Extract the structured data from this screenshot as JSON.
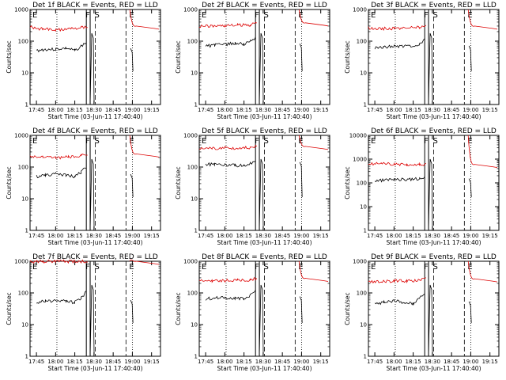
{
  "chart_data": [
    {
      "type": "line",
      "title": "Det 1f BLACK = Events, RED = LLD",
      "xlabel": "Start Time (03-Jun-11 17:40:40)",
      "ylabel": "Counts/sec",
      "x_ticks": [
        "17:45",
        "18:00",
        "18:15",
        "18:30",
        "18:45",
        "19:00",
        "19:15"
      ],
      "y_ticks": [
        "1",
        "10",
        "100",
        "1000"
      ],
      "y_scale": "log",
      "ylim": [
        1,
        1000
      ],
      "xlim_minutes": [
        17.75,
        19.33
      ],
      "series": [
        {
          "name": "Events",
          "color": "#000000",
          "x": [
            "17:45",
            "17:52",
            "18:00",
            "18:08",
            "18:15",
            "18:20",
            "18:24"
          ],
          "y": [
            50,
            55,
            55,
            60,
            50,
            70,
            90
          ]
        },
        {
          "name": "LLD",
          "color": "#dd0000",
          "x": [
            "17:40",
            "17:50",
            "18:00",
            "18:10",
            "18:20",
            "18:25"
          ],
          "y": [
            280,
            240,
            220,
            250,
            270,
            300
          ]
        }
      ],
      "markers": [
        "E",
        "F",
        "S",
        "E"
      ]
    },
    {
      "type": "line",
      "title": "Det 2f BLACK = Events, RED = LLD",
      "xlabel": "Start Time (03-Jun-11 17:40:40)",
      "ylabel": "Counts/sec",
      "x_ticks": [
        "17:45",
        "18:00",
        "18:15",
        "18:30",
        "18:45",
        "19:00",
        "19:15"
      ],
      "y_ticks": [
        "1",
        "10",
        "100",
        "1000"
      ],
      "y_scale": "log",
      "ylim": [
        1,
        1000
      ],
      "series": [
        {
          "name": "Events",
          "color": "#000000",
          "x": [
            "17:45",
            "17:52",
            "18:00",
            "18:08",
            "18:15",
            "18:20",
            "18:24"
          ],
          "y": [
            70,
            75,
            80,
            85,
            80,
            100,
            130
          ]
        },
        {
          "name": "LLD",
          "color": "#dd0000",
          "x": [
            "17:40",
            "17:50",
            "18:00",
            "18:10",
            "18:20",
            "18:25"
          ],
          "y": [
            300,
            300,
            310,
            320,
            330,
            380
          ]
        }
      ],
      "markers": [
        "E",
        "F",
        "S",
        "E"
      ]
    },
    {
      "type": "line",
      "title": "Det 3f BLACK = Events, RED = LLD",
      "xlabel": "Start Time (03-Jun-11 17:40:40)",
      "ylabel": "Counts/sec",
      "x_ticks": [
        "17:45",
        "18:00",
        "18:15",
        "18:30",
        "18:45",
        "19:00",
        "19:15"
      ],
      "y_ticks": [
        "1",
        "10",
        "100",
        "1000"
      ],
      "y_scale": "log",
      "ylim": [
        1,
        1000
      ],
      "series": [
        {
          "name": "Events",
          "color": "#000000",
          "x": [
            "17:45",
            "17:52",
            "18:00",
            "18:08",
            "18:15",
            "18:20",
            "18:24"
          ],
          "y": [
            60,
            65,
            70,
            70,
            65,
            80,
            110
          ]
        },
        {
          "name": "LLD",
          "color": "#dd0000",
          "x": [
            "17:40",
            "17:50",
            "18:00",
            "18:10",
            "18:20",
            "18:25"
          ],
          "y": [
            260,
            250,
            250,
            260,
            280,
            300
          ]
        }
      ],
      "markers": [
        "E",
        "F",
        "S",
        "E"
      ]
    },
    {
      "type": "line",
      "title": "Det 4f BLACK = Events, RED = LLD",
      "xlabel": "Start Time (03-Jun-11 17:40:40)",
      "ylabel": "Counts/sec",
      "x_ticks": [
        "17:45",
        "18:00",
        "18:15",
        "18:30",
        "18:45",
        "19:00",
        "19:15"
      ],
      "y_ticks": [
        "1",
        "10",
        "100",
        "1000"
      ],
      "y_scale": "log",
      "ylim": [
        1,
        1000
      ],
      "series": [
        {
          "name": "Events",
          "color": "#000000",
          "x": [
            "17:45",
            "17:52",
            "18:00",
            "18:08",
            "18:15",
            "18:20",
            "18:24"
          ],
          "y": [
            50,
            55,
            60,
            55,
            50,
            70,
            100
          ]
        },
        {
          "name": "LLD",
          "color": "#dd0000",
          "x": [
            "17:40",
            "17:50",
            "18:00",
            "18:10",
            "18:20",
            "18:25"
          ],
          "y": [
            220,
            210,
            200,
            210,
            230,
            260
          ]
        }
      ],
      "markers": [
        "E",
        "F",
        "S",
        "E"
      ]
    },
    {
      "type": "line",
      "title": "Det 5f BLACK = Events, RED = LLD",
      "xlabel": "Start Time (03-Jun-11 17:40:40)",
      "ylabel": "Counts/sec",
      "x_ticks": [
        "17:45",
        "18:00",
        "18:15",
        "18:30",
        "18:45",
        "19:00",
        "19:15"
      ],
      "y_ticks": [
        "1",
        "10",
        "100",
        "1000"
      ],
      "y_scale": "log",
      "ylim": [
        1,
        1000
      ],
      "series": [
        {
          "name": "Events",
          "color": "#000000",
          "x": [
            "17:45",
            "17:52",
            "18:00",
            "18:08",
            "18:15",
            "18:20",
            "18:24"
          ],
          "y": [
            120,
            125,
            120,
            115,
            110,
            130,
            160
          ]
        },
        {
          "name": "LLD",
          "color": "#dd0000",
          "x": [
            "17:40",
            "17:50",
            "18:00",
            "18:10",
            "18:20",
            "18:25"
          ],
          "y": [
            380,
            390,
            400,
            400,
            410,
            450
          ]
        }
      ],
      "markers": [
        "E",
        "F",
        "S",
        "E"
      ]
    },
    {
      "type": "line",
      "title": "Det 6f BLACK = Events, RED = LLD",
      "xlabel": "Start Time (03-Jun-11 17:40:40)",
      "ylabel": "Counts/sec",
      "x_ticks": [
        "17:45",
        "18:00",
        "18:15",
        "18:30",
        "18:45",
        "19:00",
        "19:15"
      ],
      "y_ticks": [
        "1",
        "10",
        "100",
        "1000",
        "10000"
      ],
      "y_scale": "log",
      "ylim": [
        1,
        10000
      ],
      "series": [
        {
          "name": "Events",
          "color": "#000000",
          "x": [
            "17:45",
            "17:52",
            "18:00",
            "18:08",
            "18:15",
            "18:20",
            "18:24"
          ],
          "y": [
            120,
            130,
            140,
            140,
            140,
            150,
            180
          ]
        },
        {
          "name": "LLD",
          "color": "#dd0000",
          "x": [
            "17:40",
            "17:50",
            "18:00",
            "18:10",
            "18:20",
            "18:25"
          ],
          "y": [
            650,
            640,
            620,
            600,
            580,
            600
          ]
        }
      ],
      "markers": [
        "E",
        "F",
        "S",
        "E"
      ]
    },
    {
      "type": "line",
      "title": "Det 7f BLACK = Events, RED = LLD",
      "xlabel": "Start Time (03-Jun-11 17:40:40)",
      "ylabel": "Counts/sec",
      "x_ticks": [
        "17:45",
        "18:00",
        "18:15",
        "18:30",
        "18:45",
        "19:00",
        "19:15"
      ],
      "y_ticks": [
        "1",
        "10",
        "100",
        "1000"
      ],
      "y_scale": "log",
      "ylim": [
        1,
        1000
      ],
      "series": [
        {
          "name": "Events",
          "color": "#000000",
          "x": [
            "17:45",
            "17:52",
            "18:00",
            "18:08",
            "18:15",
            "18:20",
            "18:24"
          ],
          "y": [
            50,
            55,
            55,
            55,
            50,
            70,
            110
          ]
        },
        {
          "name": "LLD",
          "color": "#dd0000",
          "x": [
            "17:40",
            "17:50",
            "18:00",
            "18:10",
            "18:20",
            "18:25"
          ],
          "y": [
            950,
            980,
            1000,
            990,
            980,
            1000
          ]
        }
      ],
      "markers": [
        "E",
        "F",
        "S",
        "E"
      ]
    },
    {
      "type": "line",
      "title": "Det 8f BLACK = Events, RED = LLD",
      "xlabel": "Start Time (03-Jun-11 17:40:40)",
      "ylabel": "Counts/sec",
      "x_ticks": [
        "17:45",
        "18:00",
        "18:15",
        "18:30",
        "18:45",
        "19:00",
        "19:15"
      ],
      "y_ticks": [
        "1",
        "10",
        "100",
        "1000"
      ],
      "y_scale": "log",
      "ylim": [
        1,
        1000
      ],
      "series": [
        {
          "name": "Events",
          "color": "#000000",
          "x": [
            "17:45",
            "17:52",
            "18:00",
            "18:08",
            "18:15",
            "18:20",
            "18:24"
          ],
          "y": [
            65,
            70,
            70,
            70,
            65,
            85,
            110
          ]
        },
        {
          "name": "LLD",
          "color": "#dd0000",
          "x": [
            "17:40",
            "17:50",
            "18:00",
            "18:10",
            "18:20",
            "18:25"
          ],
          "y": [
            240,
            240,
            250,
            250,
            260,
            290
          ]
        }
      ],
      "markers": [
        "E",
        "F",
        "S",
        "E"
      ]
    },
    {
      "type": "line",
      "title": "Det 9f BLACK = Events, RED = LLD",
      "xlabel": "Start Time (03-Jun-11 17:40:40)",
      "ylabel": "Counts/sec",
      "x_ticks": [
        "17:45",
        "18:00",
        "18:15",
        "18:30",
        "18:45",
        "19:00",
        "19:15"
      ],
      "y_ticks": [
        "1",
        "10",
        "100",
        "1000"
      ],
      "y_scale": "log",
      "ylim": [
        1,
        1000
      ],
      "series": [
        {
          "name": "Events",
          "color": "#000000",
          "x": [
            "17:45",
            "17:52",
            "18:00",
            "18:08",
            "18:15",
            "18:20",
            "18:24"
          ],
          "y": [
            45,
            50,
            55,
            50,
            45,
            65,
            100
          ]
        },
        {
          "name": "LLD",
          "color": "#dd0000",
          "x": [
            "17:40",
            "17:50",
            "18:00",
            "18:10",
            "18:20",
            "18:25"
          ],
          "y": [
            230,
            230,
            240,
            240,
            250,
            280
          ]
        }
      ],
      "markers": [
        "E",
        "F",
        "S",
        "E"
      ]
    }
  ]
}
